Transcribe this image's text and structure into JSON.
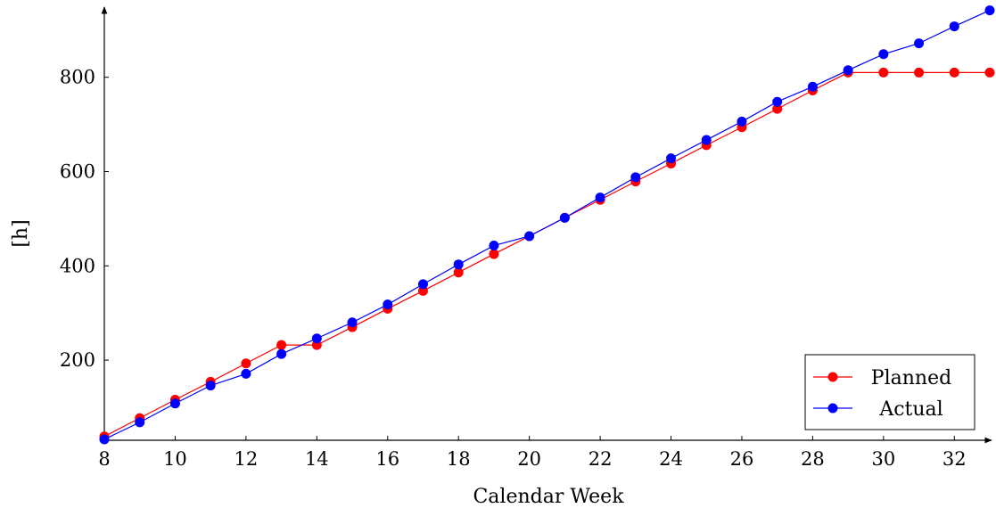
{
  "chart_data": {
    "type": "line",
    "title": "",
    "xlabel": "Calendar Week",
    "ylabel": "[h]",
    "xlim": [
      8,
      33
    ],
    "ylim": [
      30,
      945
    ],
    "x_ticks": [
      8,
      10,
      12,
      14,
      16,
      18,
      20,
      22,
      24,
      26,
      28,
      30,
      32
    ],
    "y_ticks": [
      200,
      400,
      600,
      800
    ],
    "grid": false,
    "legend_position": "bottom-right",
    "series": [
      {
        "name": "Planned",
        "color": "#ff0000",
        "x": [
          8,
          9,
          10,
          11,
          12,
          13,
          14,
          15,
          16,
          17,
          18,
          19,
          20,
          21,
          22,
          23,
          24,
          25,
          26,
          27,
          28,
          29,
          30,
          31,
          32,
          33
        ],
        "y": [
          38,
          77,
          116,
          154,
          193,
          232,
          232,
          270,
          309,
          347,
          386,
          425,
          463,
          502,
          540,
          579,
          617,
          656,
          694,
          733,
          772,
          810,
          810,
          810,
          810,
          810
        ]
      },
      {
        "name": "Actual",
        "color": "#0000ff",
        "x": [
          8,
          9,
          10,
          11,
          12,
          13,
          14,
          15,
          16,
          17,
          18,
          19,
          20,
          21,
          22,
          23,
          24,
          25,
          26,
          27,
          28,
          29,
          30,
          31,
          32,
          33
        ],
        "y": [
          32,
          68,
          108,
          146,
          171,
          213,
          246,
          280,
          318,
          361,
          403,
          443,
          463,
          502,
          545,
          588,
          628,
          667,
          706,
          748,
          780,
          815,
          849,
          872,
          908,
          942
        ]
      }
    ]
  }
}
